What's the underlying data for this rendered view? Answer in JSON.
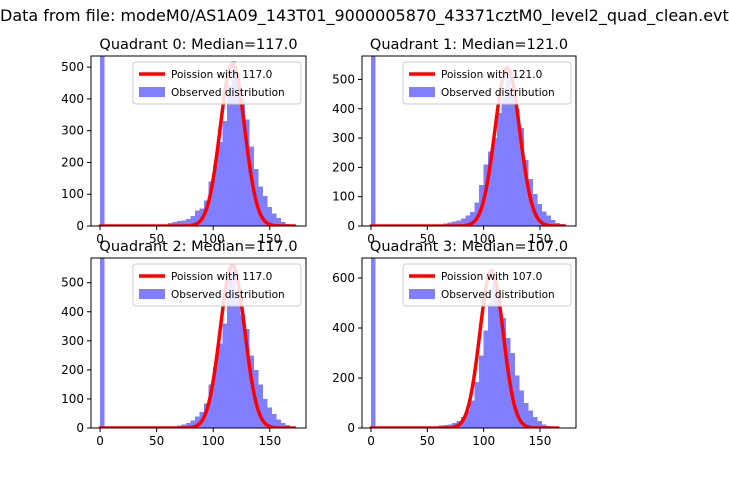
{
  "figure": {
    "title": "Data from file: modeM0/AS1A09_143T01_9000005870_43371cztM0_level2_quad_clean.evt"
  },
  "colors": {
    "observed": "#7f7fff",
    "poisson": "#ff0000",
    "axes": "#000000"
  },
  "chart_data": [
    {
      "type": "bar",
      "title": "Quadrant 0: Median=117.0",
      "xlim": [
        -8,
        182
      ],
      "ylim": [
        0,
        535
      ],
      "xticks": [
        0,
        50,
        100,
        150
      ],
      "yticks": [
        0,
        100,
        200,
        300,
        400,
        500
      ],
      "legend": {
        "placement": "upper-right",
        "entries": [
          "Poission with 117.0",
          "Observed distribution"
        ]
      },
      "observed": {
        "name": "Observed distribution",
        "bin_width": 4,
        "bins": [
          [
            0,
            535
          ],
          [
            60,
            10
          ],
          [
            64,
            12
          ],
          [
            68,
            15
          ],
          [
            72,
            18
          ],
          [
            76,
            22
          ],
          [
            80,
            32
          ],
          [
            84,
            48
          ],
          [
            88,
            55
          ],
          [
            92,
            80
          ],
          [
            96,
            140
          ],
          [
            100,
            190
          ],
          [
            104,
            265
          ],
          [
            108,
            330
          ],
          [
            112,
            440
          ],
          [
            116,
            520
          ],
          [
            120,
            480
          ],
          [
            124,
            400
          ],
          [
            128,
            335
          ],
          [
            132,
            250
          ],
          [
            136,
            180
          ],
          [
            140,
            125
          ],
          [
            144,
            95
          ],
          [
            148,
            60
          ],
          [
            152,
            40
          ],
          [
            156,
            25
          ],
          [
            160,
            12
          ],
          [
            164,
            6
          ]
        ]
      },
      "poisson": {
        "name": "Poission with 117.0",
        "mean": 117.0,
        "x": [
          0,
          172
        ],
        "peak": 510
      }
    },
    {
      "type": "bar",
      "title": "Quadrant 1: Median=121.0",
      "xlim": [
        -8,
        182
      ],
      "ylim": [
        0,
        580
      ],
      "xticks": [
        0,
        50,
        100,
        150
      ],
      "yticks": [
        0,
        100,
        200,
        300,
        400,
        500
      ],
      "legend": {
        "placement": "upper-right",
        "entries": [
          "Poission with 121.0",
          "Observed distribution"
        ]
      },
      "observed": {
        "name": "Observed distribution",
        "bin_width": 4,
        "bins": [
          [
            0,
            580
          ],
          [
            64,
            8
          ],
          [
            68,
            12
          ],
          [
            72,
            15
          ],
          [
            76,
            18
          ],
          [
            80,
            25
          ],
          [
            84,
            35
          ],
          [
            88,
            48
          ],
          [
            92,
            80
          ],
          [
            96,
            140
          ],
          [
            100,
            210
          ],
          [
            104,
            255
          ],
          [
            108,
            300
          ],
          [
            112,
            385
          ],
          [
            116,
            440
          ],
          [
            120,
            520
          ],
          [
            124,
            450
          ],
          [
            128,
            400
          ],
          [
            132,
            335
          ],
          [
            136,
            225
          ],
          [
            140,
            160
          ],
          [
            144,
            110
          ],
          [
            148,
            75
          ],
          [
            152,
            50
          ],
          [
            156,
            35
          ],
          [
            160,
            20
          ],
          [
            164,
            10
          ],
          [
            168,
            6
          ]
        ]
      },
      "poisson": {
        "name": "Poission with 121.0",
        "mean": 121.0,
        "x": [
          0,
          172
        ],
        "peak": 540
      }
    },
    {
      "type": "bar",
      "title": "Quadrant 2: Median=117.0",
      "xlim": [
        -8,
        182
      ],
      "ylim": [
        0,
        585
      ],
      "xticks": [
        0,
        50,
        100,
        150
      ],
      "yticks": [
        0,
        100,
        200,
        300,
        400,
        500
      ],
      "legend": {
        "placement": "upper-right",
        "entries": [
          "Poission with 117.0",
          "Observed distribution"
        ]
      },
      "observed": {
        "name": "Observed distribution",
        "bin_width": 4,
        "bins": [
          [
            0,
            585
          ],
          [
            64,
            6
          ],
          [
            68,
            8
          ],
          [
            72,
            12
          ],
          [
            76,
            18
          ],
          [
            80,
            25
          ],
          [
            84,
            40
          ],
          [
            88,
            55
          ],
          [
            92,
            85
          ],
          [
            96,
            150
          ],
          [
            100,
            210
          ],
          [
            104,
            290
          ],
          [
            108,
            360
          ],
          [
            112,
            510
          ],
          [
            116,
            545
          ],
          [
            120,
            470
          ],
          [
            124,
            390
          ],
          [
            128,
            340
          ],
          [
            132,
            250
          ],
          [
            136,
            200
          ],
          [
            140,
            150
          ],
          [
            144,
            100
          ],
          [
            148,
            70
          ],
          [
            152,
            48
          ],
          [
            156,
            30
          ],
          [
            160,
            18
          ],
          [
            164,
            10
          ]
        ]
      },
      "poisson": {
        "name": "Poission with 117.0",
        "mean": 117.0,
        "x": [
          0,
          172
        ],
        "peak": 560
      }
    },
    {
      "type": "bar",
      "title": "Quadrant 3: Median=107.0",
      "xlim": [
        -8,
        182
      ],
      "ylim": [
        0,
        680
      ],
      "xticks": [
        0,
        50,
        100,
        150
      ],
      "yticks": [
        0,
        200,
        400,
        600
      ],
      "legend": {
        "placement": "upper-right",
        "entries": [
          "Poission with 107.0",
          "Observed distribution"
        ]
      },
      "observed": {
        "name": "Observed distribution",
        "bin_width": 4,
        "bins": [
          [
            0,
            680
          ],
          [
            56,
            6
          ],
          [
            60,
            10
          ],
          [
            64,
            12
          ],
          [
            68,
            15
          ],
          [
            72,
            20
          ],
          [
            76,
            28
          ],
          [
            80,
            45
          ],
          [
            84,
            70
          ],
          [
            88,
            110
          ],
          [
            92,
            185
          ],
          [
            96,
            290
          ],
          [
            100,
            390
          ],
          [
            104,
            500
          ],
          [
            108,
            590
          ],
          [
            112,
            520
          ],
          [
            116,
            440
          ],
          [
            120,
            360
          ],
          [
            124,
            300
          ],
          [
            128,
            210
          ],
          [
            132,
            150
          ],
          [
            136,
            100
          ],
          [
            140,
            70
          ],
          [
            144,
            45
          ],
          [
            148,
            28
          ],
          [
            152,
            15
          ],
          [
            156,
            8
          ]
        ]
      },
      "poisson": {
        "name": "Poission with 107.0",
        "mean": 107.0,
        "x": [
          0,
          166
        ],
        "peak": 630
      }
    }
  ]
}
